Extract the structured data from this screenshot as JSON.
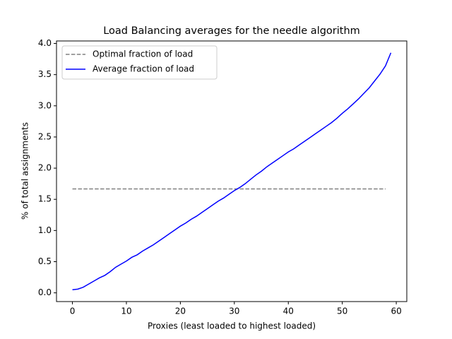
{
  "chart_data": {
    "type": "line",
    "title": "Load Balancing averages for the needle algorithm",
    "x_label": "Proxies (least loaded to highest loaded)",
    "y_label": "% of total assignments",
    "xlim": [
      -2.95,
      61.95
    ],
    "ylim": [
      -0.14,
      4.04
    ],
    "xticks": [
      0,
      10,
      20,
      30,
      40,
      50,
      60
    ],
    "yticks": [
      {
        "value": 0,
        "label": "0.0"
      },
      0.5,
      {
        "value": 1,
        "label": "1.0"
      },
      1.5,
      {
        "value": 2,
        "label": "2.0"
      },
      2.5,
      {
        "value": 3,
        "label": "3.0"
      },
      3.5,
      {
        "value": 4,
        "label": "4.0"
      }
    ],
    "legend": "upper left",
    "series": [
      {
        "name": "Optimal fraction of load",
        "color": "#808080",
        "dash": true,
        "x": [
          0,
          58
        ],
        "values": [
          1.667,
          1.667
        ]
      },
      {
        "name": "Average fraction of load",
        "color": "#0000ff",
        "dash": false,
        "x": [
          0,
          1,
          2,
          3,
          4,
          5,
          6,
          7,
          8,
          9,
          10,
          11,
          12,
          13,
          14,
          15,
          16,
          17,
          18,
          19,
          20,
          21,
          22,
          23,
          24,
          25,
          26,
          27,
          28,
          29,
          30,
          31,
          32,
          33,
          34,
          35,
          36,
          37,
          38,
          39,
          40,
          41,
          42,
          43,
          44,
          45,
          46,
          47,
          48,
          49,
          50,
          51,
          52,
          53,
          54,
          55,
          56,
          57,
          58,
          59
        ],
        "values": [
          0.05,
          0.06,
          0.09,
          0.14,
          0.19,
          0.24,
          0.28,
          0.34,
          0.41,
          0.46,
          0.51,
          0.57,
          0.61,
          0.67,
          0.72,
          0.77,
          0.83,
          0.89,
          0.95,
          1.01,
          1.07,
          1.12,
          1.18,
          1.23,
          1.29,
          1.35,
          1.41,
          1.47,
          1.52,
          1.58,
          1.64,
          1.69,
          1.75,
          1.82,
          1.89,
          1.95,
          2.02,
          2.08,
          2.14,
          2.2,
          2.26,
          2.31,
          2.37,
          2.43,
          2.49,
          2.55,
          2.61,
          2.67,
          2.73,
          2.8,
          2.88,
          2.95,
          3.03,
          3.11,
          3.2,
          3.29,
          3.4,
          3.51,
          3.64,
          3.85
        ]
      }
    ]
  }
}
